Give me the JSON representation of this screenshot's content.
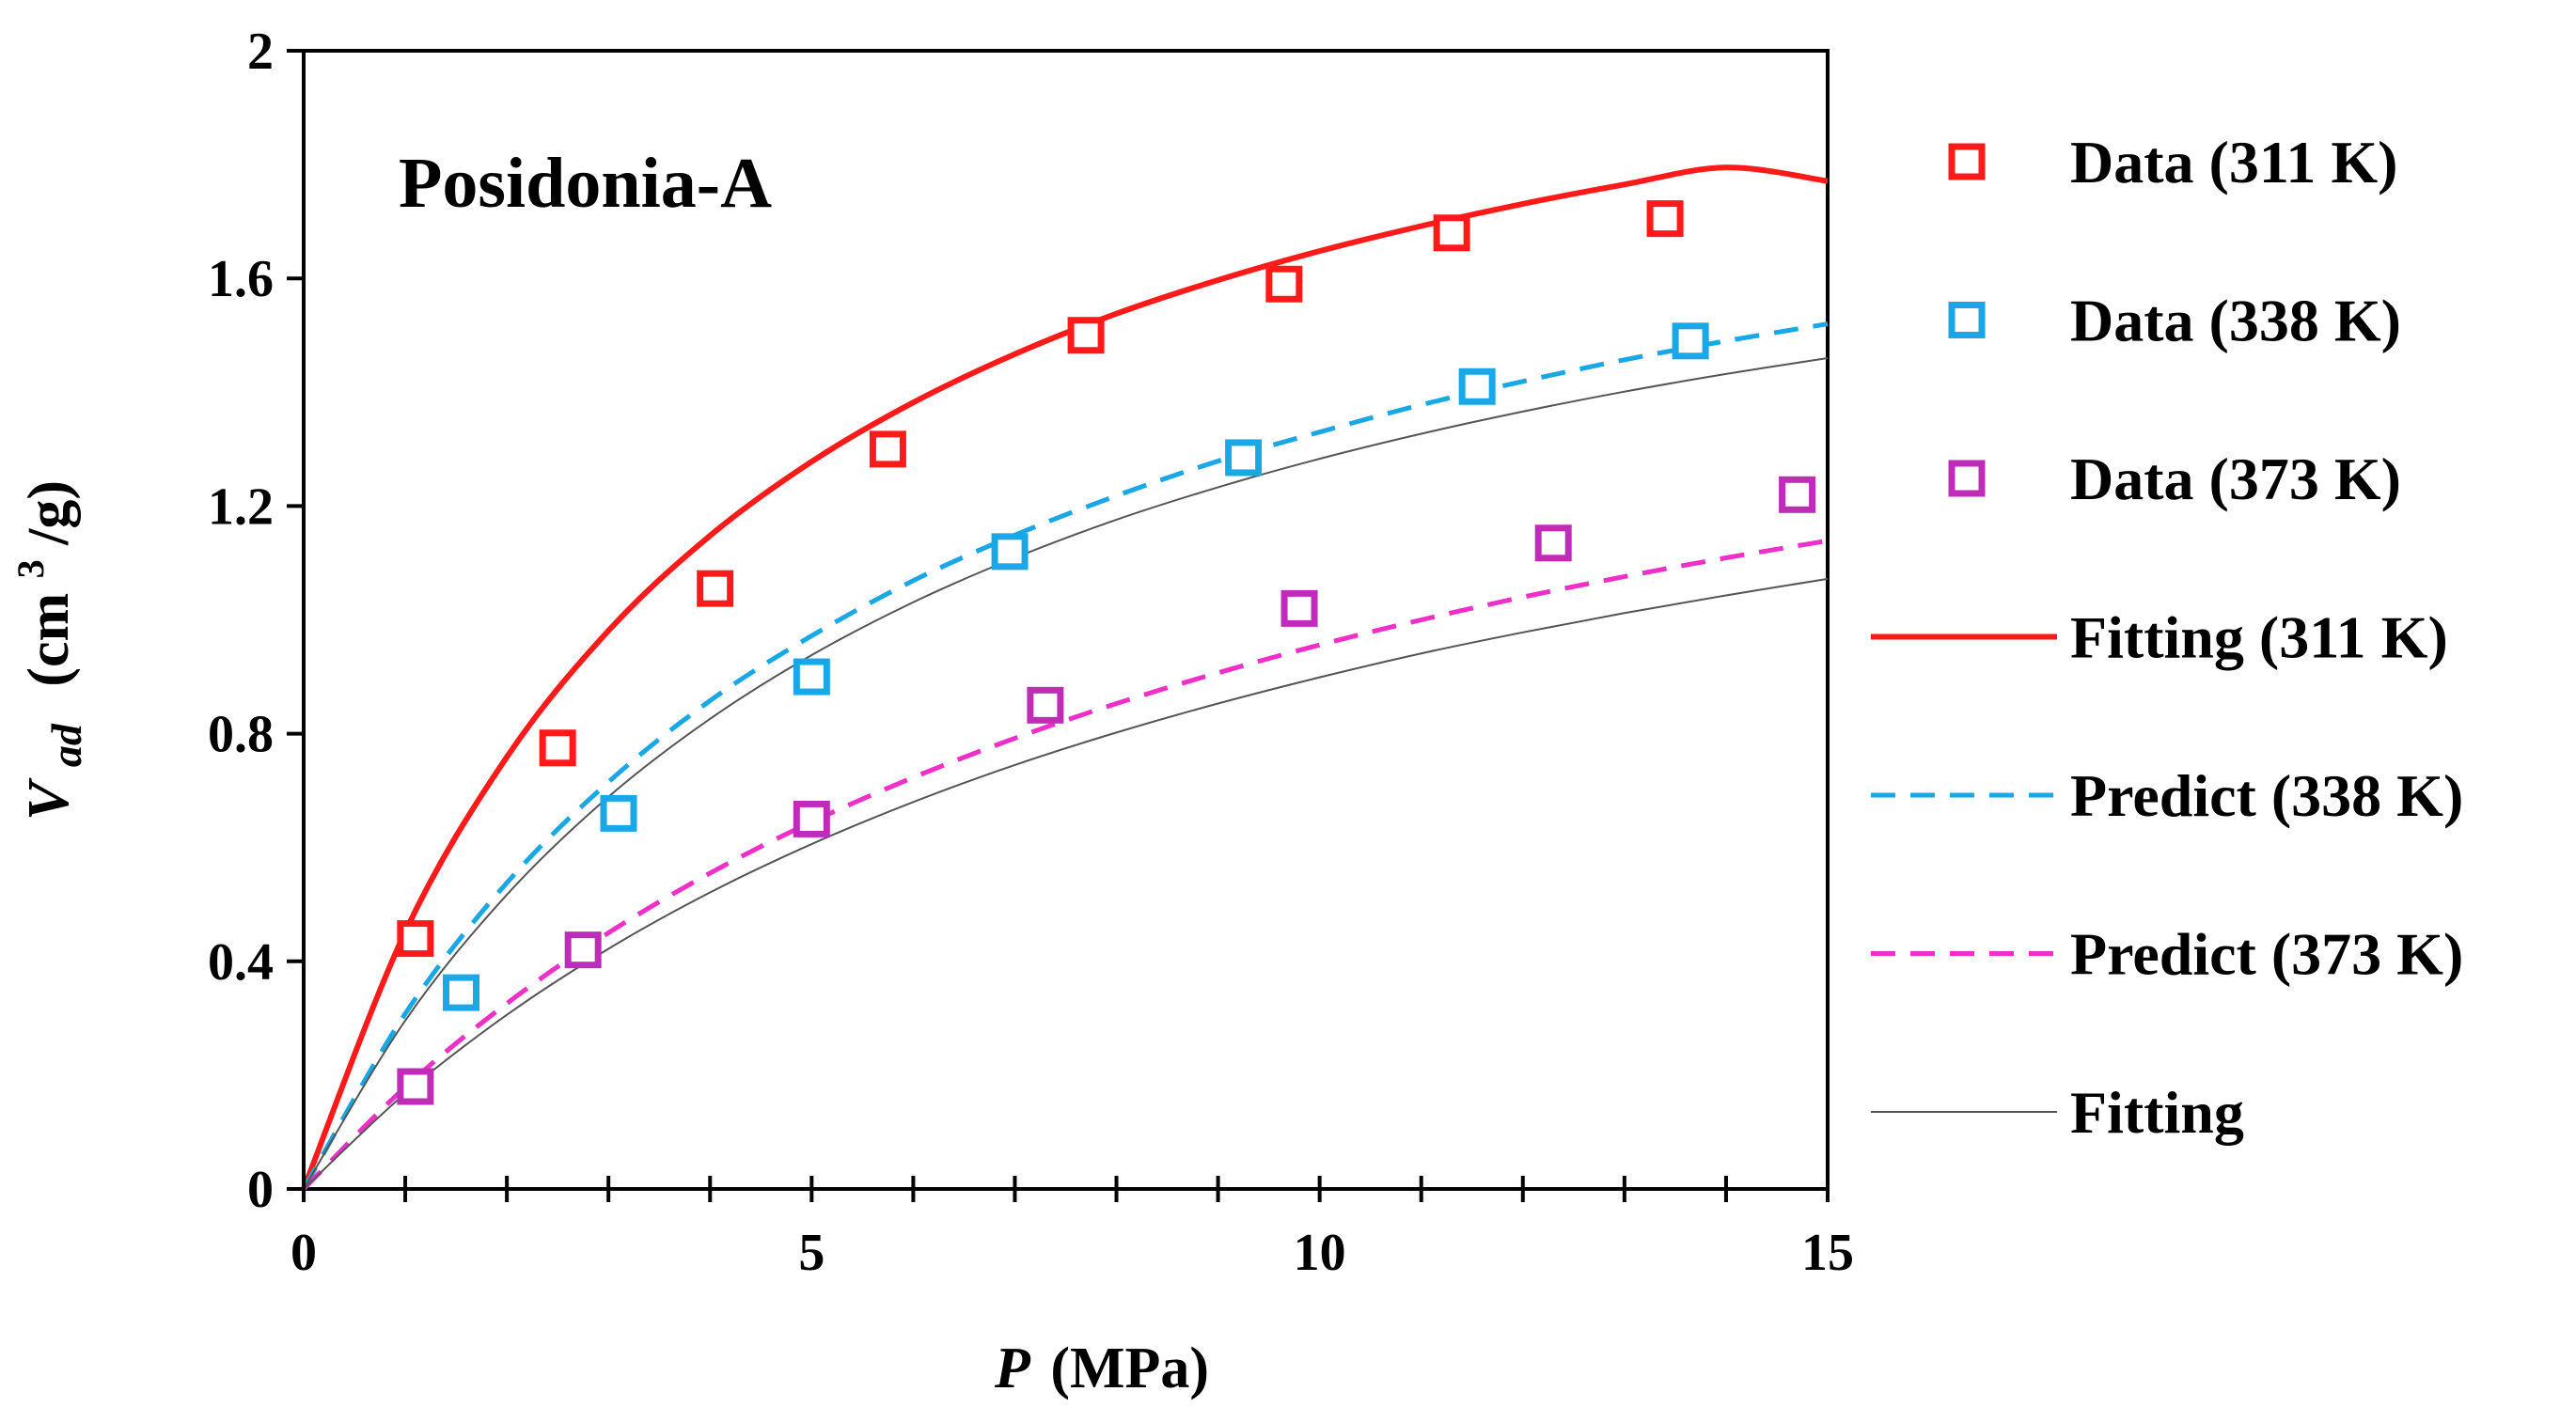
{
  "chart_data": {
    "type": "scatter",
    "annotation": "Posidonia-A",
    "xlabel": {
      "symbol": "P",
      "unit": "(MPa)"
    },
    "ylabel": {
      "symbol": "V",
      "subscript": "ad",
      "unit_pre": "(cm",
      "unit_sup": "3",
      "unit_post": "/g)"
    },
    "xlim": [
      0,
      15
    ],
    "ylim": [
      0,
      2
    ],
    "xticks": [
      0,
      5,
      10,
      15
    ],
    "xtick_labels": [
      "0",
      "5",
      "10",
      "15"
    ],
    "x_minor_step": 1,
    "yticks": [
      0,
      0.4,
      0.8,
      1.2,
      1.6,
      2
    ],
    "ytick_labels": [
      "0",
      "0.4",
      "0.8",
      "1.2",
      "1.6",
      "2"
    ],
    "series": [
      {
        "name": "Data (311 K)",
        "kind": "marker",
        "color": "#ff1a1a",
        "x": [
          1.1,
          2.5,
          4.05,
          5.75,
          7.7,
          9.65,
          11.3,
          13.4
        ],
        "y": [
          0.44,
          0.775,
          1.055,
          1.3,
          1.5,
          1.59,
          1.68,
          1.705
        ]
      },
      {
        "name": "Data (338 K)",
        "kind": "marker",
        "color": "#1aa7e6",
        "x": [
          1.55,
          3.1,
          5.0,
          6.95,
          9.25,
          11.55,
          13.65
        ],
        "y": [
          0.345,
          0.66,
          0.9,
          1.12,
          1.285,
          1.41,
          1.49
        ]
      },
      {
        "name": "Data (373 K)",
        "kind": "marker",
        "color": "#bf2db8",
        "x": [
          1.1,
          2.75,
          5.0,
          7.3,
          9.8,
          12.3,
          14.7
        ],
        "y": [
          0.18,
          0.42,
          0.65,
          0.85,
          1.02,
          1.135,
          1.22
        ]
      },
      {
        "name": "Fitting (311 K)",
        "kind": "line",
        "style": "solid",
        "color": "#ff1a1a",
        "x": [
          0,
          1,
          2,
          3,
          4,
          5,
          6,
          7,
          8,
          9,
          10,
          11,
          12,
          13,
          14,
          15
        ],
        "y": [
          0,
          0.452,
          0.759,
          0.981,
          1.148,
          1.278,
          1.382,
          1.467,
          1.538,
          1.597,
          1.648,
          1.692,
          1.731,
          1.765,
          1.795,
          1.771
        ]
      },
      {
        "name": "Predict (338 K)",
        "kind": "line",
        "style": "dashed",
        "color": "#1aa7e6",
        "x": [
          0,
          1,
          2,
          3,
          4,
          5,
          6,
          7,
          8,
          9,
          10,
          11,
          12,
          13,
          14,
          15
        ],
        "y": [
          0,
          0.308,
          0.538,
          0.715,
          0.858,
          0.972,
          1.069,
          1.149,
          1.218,
          1.279,
          1.33,
          1.378,
          1.419,
          1.457,
          1.49,
          1.52
        ]
      },
      {
        "name": "Predict (373 K)",
        "kind": "line",
        "style": "dashed",
        "color": "#f02ec8",
        "x": [
          0,
          1,
          2,
          3,
          4,
          5,
          6,
          7,
          8,
          9,
          10,
          11,
          12,
          13,
          14,
          15
        ],
        "y": [
          0,
          0.179,
          0.326,
          0.45,
          0.555,
          0.645,
          0.723,
          0.792,
          0.853,
          0.907,
          0.956,
          1.0,
          1.04,
          1.076,
          1.109,
          1.139
        ]
      },
      {
        "name": "Fitting",
        "kind": "line",
        "style": "thin",
        "color": "#555555",
        "x": [
          0,
          1,
          2,
          3,
          4,
          5,
          6,
          7,
          8,
          9,
          10,
          11,
          12,
          13,
          14,
          15
        ],
        "y": [
          0,
          0.296,
          0.517,
          0.689,
          0.826,
          0.938,
          1.031,
          1.109,
          1.176,
          1.233,
          1.283,
          1.327,
          1.366,
          1.401,
          1.432,
          1.46
        ]
      },
      {
        "name": "Fitting",
        "kind": "line",
        "style": "thin",
        "color": "#555555",
        "legend": false,
        "x": [
          0,
          1,
          2,
          3,
          4,
          5,
          6,
          7,
          8,
          9,
          10,
          11,
          12,
          13,
          14,
          15
        ],
        "y": [
          0,
          0.168,
          0.306,
          0.422,
          0.521,
          0.606,
          0.68,
          0.745,
          0.802,
          0.853,
          0.899,
          0.941,
          0.978,
          1.012,
          1.043,
          1.072
        ]
      }
    ]
  }
}
